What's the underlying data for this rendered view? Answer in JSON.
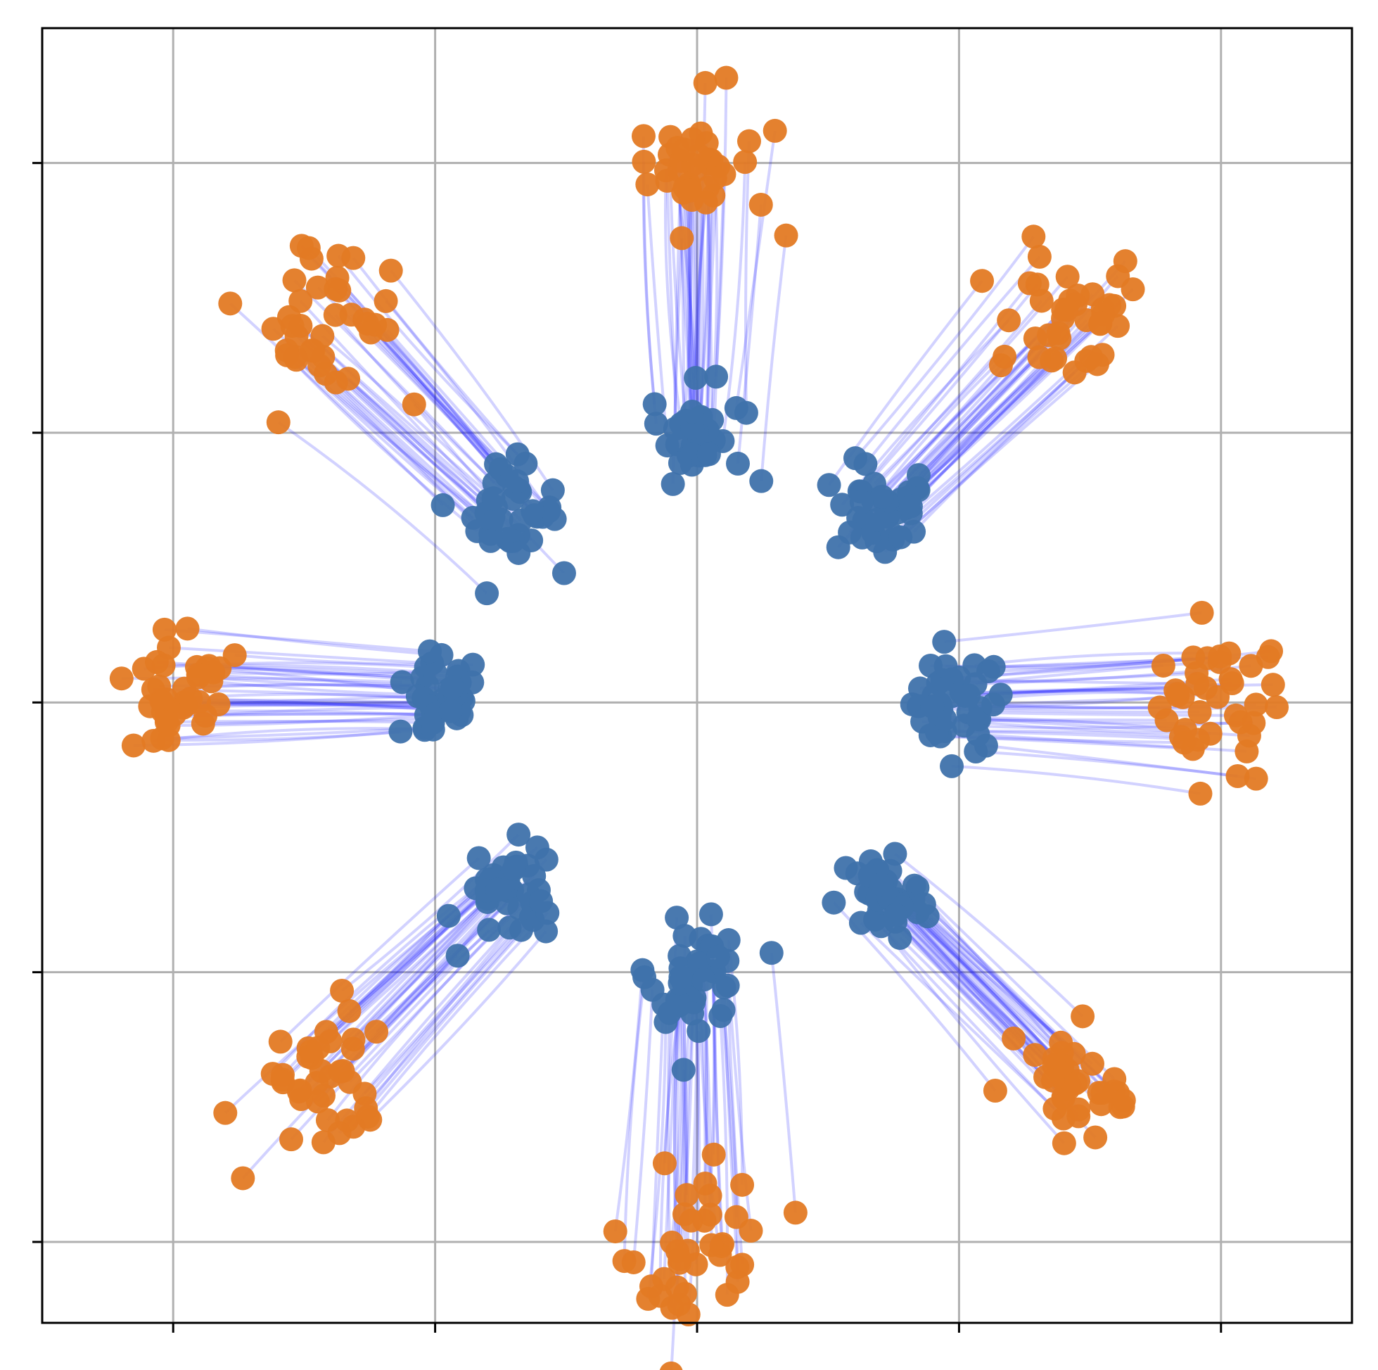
{
  "chart_data": {
    "type": "scatter",
    "title": "",
    "xlabel": "",
    "ylabel": "",
    "xlim": [
      -2.5,
      2.5
    ],
    "ylim": [
      -2.3,
      2.5
    ],
    "xticks": [
      -2,
      -1,
      0,
      1,
      2
    ],
    "yticks": [
      -2,
      -1,
      0,
      1,
      2
    ],
    "show_tick_labels": false,
    "grid": true,
    "legend": "none",
    "colors": {
      "source_points": "#3f72ab",
      "target_points": "#e37a24",
      "flow_lines": "#1f1fff",
      "grid": "#b0b0b0",
      "axes": "#000000"
    },
    "clusters": [
      {
        "id": "cluster-0",
        "source_center": [
          1.0,
          0.0
        ],
        "target_center": [
          2.0,
          0.0
        ]
      },
      {
        "id": "cluster-45",
        "source_center": [
          0.71,
          0.71
        ],
        "target_center": [
          1.42,
          1.42
        ]
      },
      {
        "id": "cluster-90",
        "source_center": [
          0.0,
          1.0
        ],
        "target_center": [
          0.0,
          2.0
        ]
      },
      {
        "id": "cluster-135",
        "source_center": [
          -0.71,
          0.71
        ],
        "target_center": [
          -1.42,
          1.42
        ]
      },
      {
        "id": "cluster-180",
        "source_center": [
          -1.0,
          0.0
        ],
        "target_center": [
          -2.0,
          0.0
        ]
      },
      {
        "id": "cluster-225",
        "source_center": [
          -0.71,
          -0.71
        ],
        "target_center": [
          -1.42,
          -1.42
        ]
      },
      {
        "id": "cluster-270",
        "source_center": [
          0.0,
          -1.0
        ],
        "target_center": [
          0.0,
          -2.0
        ]
      },
      {
        "id": "cluster-315",
        "source_center": [
          0.71,
          -0.71
        ],
        "target_center": [
          1.42,
          -1.42
        ]
      }
    ],
    "points_per_cluster": 40,
    "point_spread": 0.09
  }
}
